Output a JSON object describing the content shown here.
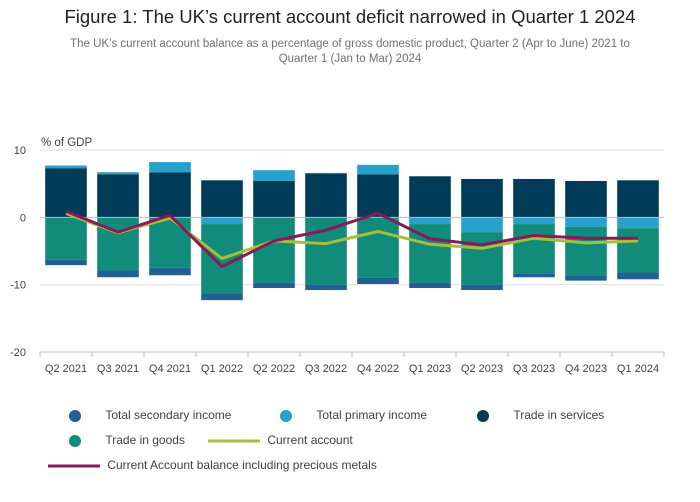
{
  "header": {
    "title": "Figure 1: The UK’s current account deficit narrowed in Quarter 1 2024",
    "subtitle_line1": "The UK’s current account balance as a percentage of gross domestic product, Quarter 2 (Apr to June) 2021 to",
    "subtitle_line2": "Quarter 1 (Jan to Mar) 2024"
  },
  "colors": {
    "total_secondary_income": "#206095",
    "total_primary_income": "#27a0cc",
    "trade_in_services": "#003c57",
    "trade_in_goods": "#118c7b",
    "current_account": "#a8bd3a",
    "current_account_precious_metals": "#871a5b",
    "grid": "#e0e0e0",
    "zero_line": "#bbbbbb"
  },
  "legend": {
    "total_secondary_income": "Total secondary income",
    "total_primary_income": "Total primary income",
    "trade_in_services": "Trade in services",
    "trade_in_goods": "Trade in goods",
    "current_account": "Current account",
    "current_account_precious_metals": "Current Account balance including precious metals"
  },
  "chart_data": {
    "type": "bar",
    "stacked": true,
    "ylabel": "% of GDP",
    "ylim": [
      -20,
      10
    ],
    "yticks": [
      10,
      0,
      -10,
      -20
    ],
    "grid": true,
    "legend_position": "bottom",
    "categories": [
      "Q2 2021",
      "Q3 2021",
      "Q4 2021",
      "Q1 2022",
      "Q2 2022",
      "Q3 2022",
      "Q4 2022",
      "Q1 2023",
      "Q2 2023",
      "Q3 2023",
      "Q4 2023",
      "Q1 2024"
    ],
    "series": [
      {
        "name": "Trade in services",
        "kind": "bar",
        "values": [
          7.3,
          6.4,
          6.7,
          5.5,
          5.4,
          6.5,
          6.4,
          6.1,
          5.7,
          5.7,
          5.4,
          5.5
        ]
      },
      {
        "name": "Total primary income",
        "kind": "bar",
        "values": [
          0.4,
          0.3,
          1.5,
          -1.0,
          1.6,
          0.1,
          1.4,
          -1.0,
          -2.2,
          -1.0,
          -1.4,
          -1.6
        ]
      },
      {
        "name": "Trade in goods",
        "kind": "bar",
        "values": [
          -6.3,
          -7.9,
          -7.5,
          -10.3,
          -9.7,
          -10.0,
          -9.0,
          -8.7,
          -7.8,
          -7.3,
          -7.2,
          -6.6
        ]
      },
      {
        "name": "Total secondary income",
        "kind": "bar",
        "values": [
          -0.8,
          -1.0,
          -1.1,
          -1.0,
          -0.8,
          -0.8,
          -0.9,
          -0.8,
          -0.8,
          -0.6,
          -0.8,
          -1.0
        ]
      },
      {
        "name": "Current account",
        "kind": "line",
        "values": [
          0.6,
          -2.3,
          -0.1,
          -6.1,
          -3.5,
          -3.9,
          -2.1,
          -4.0,
          -4.6,
          -3.1,
          -3.8,
          -3.5
        ]
      },
      {
        "name": "Current Account balance including precious metals",
        "kind": "line",
        "values": [
          0.9,
          -2.2,
          0.3,
          -7.3,
          -3.5,
          -1.9,
          0.6,
          -3.2,
          -4.1,
          -2.7,
          -3.1,
          -3.1
        ]
      }
    ]
  }
}
